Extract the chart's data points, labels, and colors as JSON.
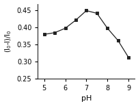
{
  "x": [
    5,
    5.5,
    6,
    6.5,
    7,
    7.5,
    8,
    8.5,
    9
  ],
  "y": [
    0.38,
    0.385,
    0.398,
    0.422,
    0.45,
    0.442,
    0.398,
    0.362,
    0.312
  ],
  "xlabel": "pH",
  "ylabel": "(I$_0$-I)/I$_0$",
  "xlim": [
    4.7,
    9.3
  ],
  "ylim": [
    0.25,
    0.47
  ],
  "yticks": [
    0.25,
    0.3,
    0.35,
    0.4,
    0.45
  ],
  "xticks": [
    5,
    6,
    7,
    8,
    9
  ],
  "line_color": "#222222",
  "marker": "s",
  "marker_size": 3.5,
  "marker_facecolor": "#222222",
  "linewidth": 0.9,
  "background_color": "#ffffff",
  "tick_labelsize": 7,
  "xlabel_fontsize": 8,
  "ylabel_fontsize": 7
}
